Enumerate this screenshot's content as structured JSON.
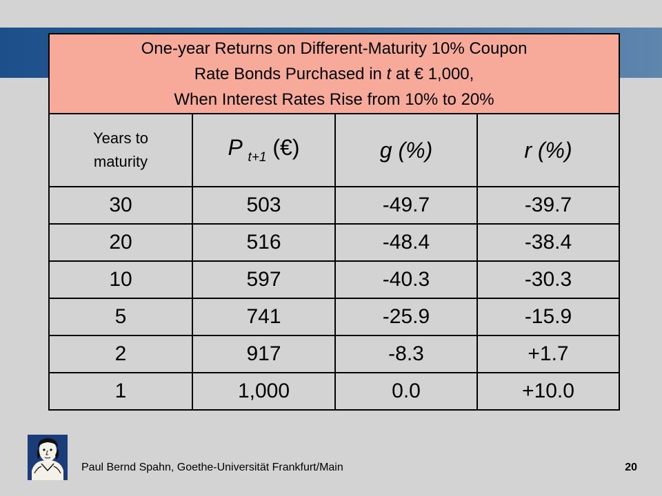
{
  "table": {
    "title": {
      "line1": "One-year Returns on Different-Maturity 10% Coupon",
      "line2_pre": "Rate Bonds Purchased in ",
      "line2_var": "t",
      "line2_post": " at € 1,000,",
      "line3": "When Interest Rates Rise from 10% to 20%"
    },
    "headers": {
      "years_line1": "Years to",
      "years_line2": "maturity",
      "price_main": "P",
      "price_sub": "t+1",
      "price_unit": " (€)",
      "g": "g (%)",
      "r": "r (%)"
    },
    "rows": [
      [
        "30",
        "503",
        "-49.7",
        "-39.7"
      ],
      [
        "20",
        "516",
        "-48.4",
        "-38.4"
      ],
      [
        "10",
        "597",
        "-40.3",
        "-30.3"
      ],
      [
        "5",
        "741",
        "-25.9",
        "-15.9"
      ],
      [
        "2",
        "917",
        "-8.3",
        "+1.7"
      ],
      [
        "1",
        "1,000",
        "0.0",
        "+10.0"
      ]
    ]
  },
  "footer": {
    "text": "Paul Bernd Spahn, Goethe-Universität Frankfurt/Main",
    "page_number": "20"
  },
  "colors": {
    "background": "#d3d3d3",
    "title_fill": "#f7a99a",
    "band": "#2f6296",
    "logo": "#1a3c78"
  }
}
